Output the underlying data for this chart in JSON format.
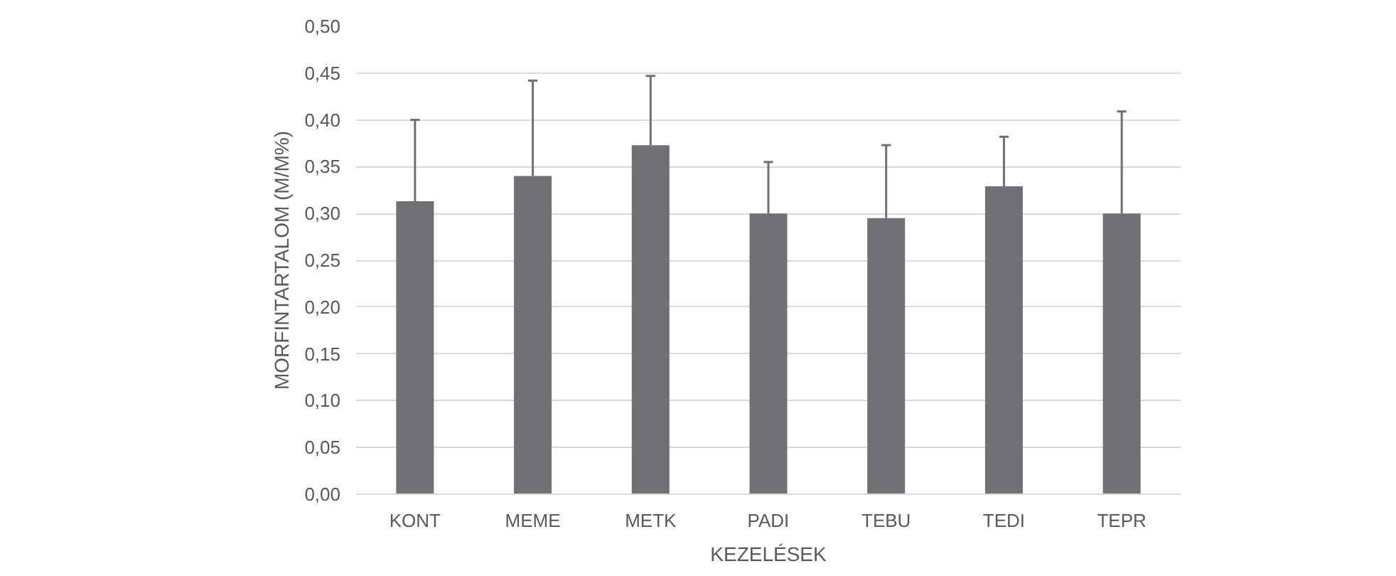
{
  "chart_data": {
    "type": "bar",
    "xlabel": "KEZELÉSEK",
    "ylabel": "MORFINTARTALOM (M/M%)",
    "categories": [
      "KONT",
      "MEME",
      "METK",
      "PADI",
      "TEBU",
      "TEDI",
      "TEPR"
    ],
    "values": [
      0.313,
      0.34,
      0.373,
      0.3,
      0.295,
      0.329,
      0.3
    ],
    "errors": [
      [
        0.313,
        0.4
      ],
      [
        0.34,
        0.442
      ],
      [
        0.373,
        0.447
      ],
      [
        0.3,
        0.355
      ],
      [
        0.295,
        0.373
      ],
      [
        0.329,
        0.382
      ],
      [
        0.3,
        0.409
      ]
    ],
    "color": "#707174",
    "ylim": [
      0,
      0.5
    ],
    "yticks": [
      {
        "value": 0,
        "label": "0,00"
      },
      {
        "value": 0.05,
        "label": "0,05"
      },
      {
        "value": 0.1,
        "label": "0,10"
      },
      {
        "value": 0.15,
        "label": "0,15"
      },
      {
        "value": 0.2,
        "label": "0,20"
      },
      {
        "value": 0.25,
        "label": "0,25"
      },
      {
        "value": 0.3,
        "label": "0,30"
      },
      {
        "value": 0.35,
        "label": "0,35"
      },
      {
        "value": 0.4,
        "label": "0,40"
      },
      {
        "value": 0.45,
        "label": "0,45"
      },
      {
        "value": 0.5,
        "label": "0,50"
      }
    ],
    "grid": "y"
  }
}
